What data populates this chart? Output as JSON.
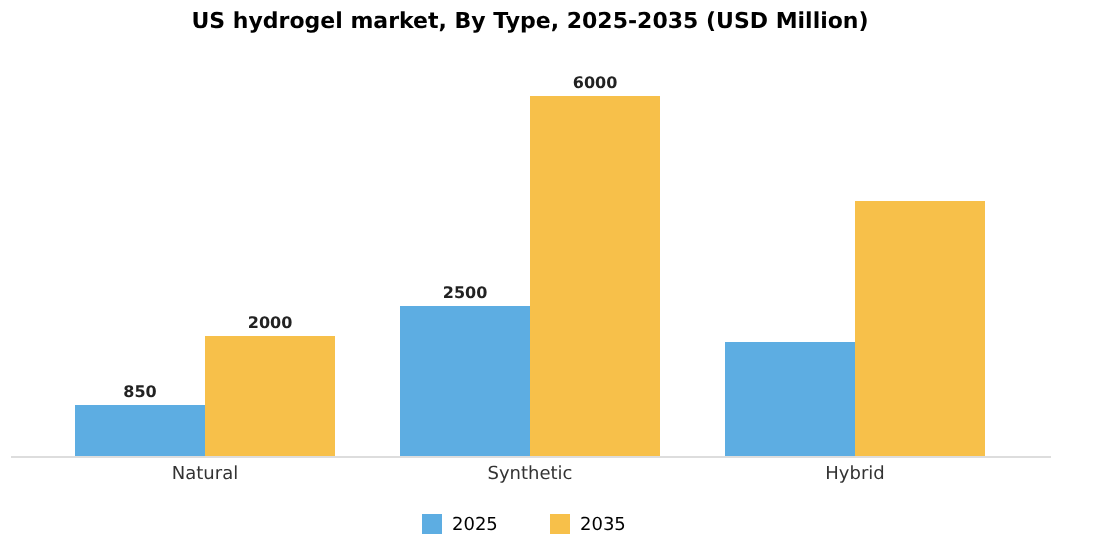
{
  "chart_data": {
    "type": "bar",
    "title": "US hydrogel market, By Type, 2025-2035 (USD Million)",
    "categories": [
      "Natural",
      "Synthetic",
      "Hybrid"
    ],
    "series": [
      {
        "name": "2025",
        "color": "#5dade2",
        "values": [
          850,
          2500,
          1900
        ],
        "value_labels": [
          "850",
          "2500",
          null
        ]
      },
      {
        "name": "2035",
        "color": "#f7c04a",
        "values": [
          2000,
          6000,
          4250
        ],
        "value_labels": [
          "2000",
          "6000",
          null
        ]
      }
    ],
    "legend": "bottom",
    "grid": false,
    "tick_labels": "x"
  }
}
